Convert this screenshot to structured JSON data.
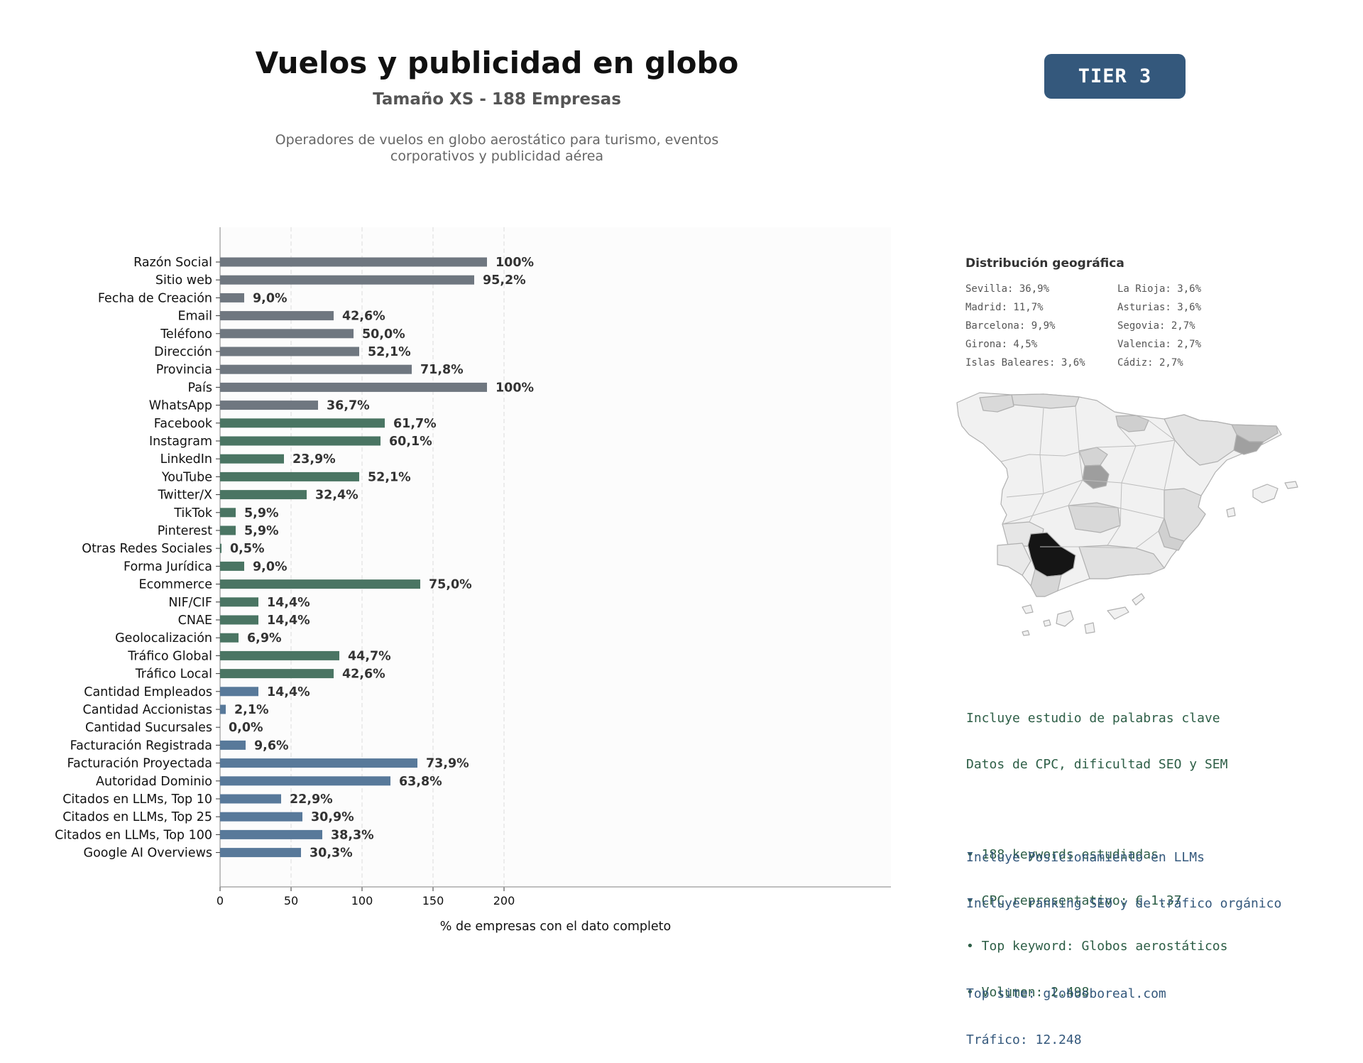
{
  "header": {
    "title": "Vuelos y publicidad en globo",
    "subtitle": "Tamaño XS - 188 Empresas",
    "description_line1": "Operadores de vuelos en globo aerostático para turismo, eventos",
    "description_line2": "corporativos y publicidad aérea",
    "tier": "TIER 3"
  },
  "colors": {
    "grey": "#6f7780",
    "green": "#4a7563",
    "blue": "#58799a",
    "tier_bg": "#34587c"
  },
  "chart_data": {
    "type": "bar",
    "orientation": "horizontal",
    "xlabel": "% de empresas con el dato completo",
    "xlim": [
      0,
      235
    ],
    "xticks": [
      0,
      50,
      100,
      150,
      200
    ],
    "grid": true,
    "categories": [
      "Razón Social",
      "Sitio web",
      "Fecha de Creación",
      "Email",
      "Teléfono",
      "Dirección",
      "Provincia",
      "País",
      "WhatsApp",
      "Facebook",
      "Instagram",
      "LinkedIn",
      "YouTube",
      "Twitter/X",
      "TikTok",
      "Pinterest",
      "Otras Redes Sociales",
      "Forma Jurídica",
      "Ecommerce",
      "NIF/CIF",
      "CNAE",
      "Geolocalización",
      "Tráfico Global",
      "Tráfico Local",
      "Cantidad Empleados",
      "Cantidad Accionistas",
      "Cantidad Sucursales",
      "Facturación Registrada",
      "Facturación Proyectada",
      "Autoridad Dominio",
      "Citados en LLMs, Top 10",
      "Citados en LLMs, Top 25",
      "Citados en LLMs, Top 100",
      "Google AI Overviews"
    ],
    "values": [
      188,
      179,
      17,
      80,
      94,
      98,
      135,
      188,
      69,
      116,
      113,
      45,
      98,
      61,
      11,
      11,
      1,
      17,
      141,
      27,
      27,
      13,
      84,
      80,
      27,
      4,
      0,
      18,
      139,
      120,
      43,
      58,
      72,
      57
    ],
    "labels": [
      "100%",
      "95,2%",
      "9,0%",
      "42,6%",
      "50,0%",
      "52,1%",
      "71,8%",
      "100%",
      "36,7%",
      "61,7%",
      "60,1%",
      "23,9%",
      "52,1%",
      "32,4%",
      "5,9%",
      "5,9%",
      "0,5%",
      "9,0%",
      "75,0%",
      "14,4%",
      "14,4%",
      "6,9%",
      "44,7%",
      "42,6%",
      "14,4%",
      "2,1%",
      "0,0%",
      "9,6%",
      "73,9%",
      "63,8%",
      "22,9%",
      "30,9%",
      "38,3%",
      "30,3%"
    ],
    "groups": [
      "grey",
      "grey",
      "grey",
      "grey",
      "grey",
      "grey",
      "grey",
      "grey",
      "grey",
      "green",
      "green",
      "green",
      "green",
      "green",
      "green",
      "green",
      "green",
      "green",
      "green",
      "green",
      "green",
      "green",
      "green",
      "green",
      "blue",
      "blue",
      "blue",
      "blue",
      "blue",
      "blue",
      "blue",
      "blue",
      "blue",
      "blue"
    ]
  },
  "geo": {
    "title": "Distribución geográfica",
    "items": [
      "Sevilla: 36,9%",
      "La Rioja: 3,6%",
      "Madrid: 11,7%",
      "Asturias: 3,6%",
      "Barcelona: 9,9%",
      "Segovia: 2,7%",
      "Girona: 4,5%",
      "Valencia: 2,7%",
      "Islas Baleares: 3,6%",
      "Cádiz: 2,7%"
    ]
  },
  "keywords": {
    "line1": "Incluye estudio de palabras clave",
    "line2": "Datos de CPC, dificultad SEO y SEM",
    "bullet1": "• 188 keywords estudiadas",
    "bullet2": "• CPC representativo: € 1.37",
    "bullet3": "• Top keyword: Globos aerostáticos",
    "bullet4": "• Volumen: 2.498"
  },
  "llm": {
    "line1": "Incluye Posicionamiento en LLMs",
    "line2": "Incluye ranking SEO y de tráfico orgánico",
    "top_site": "Top site: globosboreal.com",
    "traffic": "Tráfico: 12.248"
  }
}
